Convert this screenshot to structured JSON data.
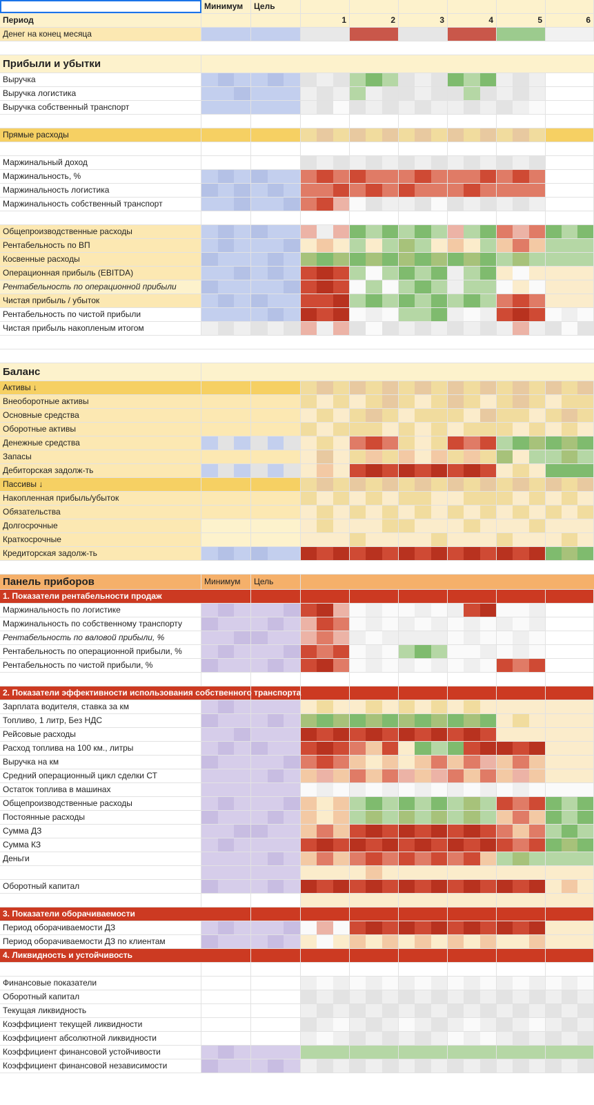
{
  "header": {
    "col_a_empty": "",
    "min_label": "Минимум",
    "goal_label": "Цель",
    "period_label": "Период",
    "periods": [
      "1",
      "2",
      "3",
      "4",
      "5",
      "6"
    ],
    "cash_end_label": "Денег на конец месяца"
  },
  "colors": {
    "header_bg": "#fdf2cc",
    "yellow_row": "#fce8b2",
    "orange_yellow": "#f6d063",
    "orange_section": "#f5b06a",
    "red_section": "#cc3a22",
    "blue_fill": "#c3cfee",
    "lavender_fill": "#d6cdea",
    "red_cf": "#d9533a",
    "green_cf": "#8bc27b",
    "grey_cf": "#e6e6e6"
  },
  "pnl": {
    "title": "Прибыли и убытки",
    "rows": [
      "Выручка",
      "Выручка логистика",
      "Выручка собственный транспорт",
      "",
      "Прямые расходы",
      "",
      "Маржинальный доход",
      "Маржинальность, %",
      "Маржинальность логистика",
      "Маржинальность собственный транспорт",
      "",
      "Общепроизводственные расходы",
      "Рентабельность по ВП",
      "Косвенные расходы",
      "Операционная прибыль (EBITDA)",
      "Рентабельность по операционной прибыли",
      "Чистая прибыль / убыток",
      "Рентабельность по чистой прибыли",
      "Чистая прибыль накопленым итогом"
    ]
  },
  "balance": {
    "title": "Баланс",
    "rows": [
      "Активы ↓",
      "Внеоборотные активы",
      "Основные средства",
      "Оборотные активы",
      "Денежные средства",
      "Запасы",
      "Дебиторская задолж-ть",
      "Пассивы ↓",
      "Накопленная прибыль/убыток",
      "Обязательства",
      "Долгосрочные",
      "Краткосрочные",
      "Кредиторская задолж-ть"
    ]
  },
  "dashboard": {
    "title": "Панель приборов",
    "min_label": "Минимум",
    "goal_label": "Цель",
    "sec1": {
      "title": "1. Показатели рентабельности продаж",
      "rows": [
        "Маржинальность по логистике",
        "Маржинальность по собственному транспорту",
        "Рентабельность по валовой прибыли, %",
        "Рентабельность по операционной прибыли, %",
        "Рентабельность по чистой прибыли, %"
      ]
    },
    "sec2": {
      "title": "2. Показатели эффективности использования собственного транспорта",
      "rows": [
        "Зарплата водителя, ставка за км",
        "Топливо, 1 литр, Без НДС",
        "Рейсовые расходы",
        "Расход топлива на 100 км., литры",
        "Выручка на км",
        "Средний операционный цикл сделки СТ",
        "Остаток топлива в машинах",
        "Общепроизводственные расходы",
        "Постоянные расходы",
        "Сумма ДЗ",
        "Сумма КЗ",
        "Деньги",
        "",
        "Оборотный капитал"
      ]
    },
    "sec3": {
      "title": "3. Показатели оборачиваемости",
      "rows": [
        "Период оборачиваемости ДЗ",
        "Период оборачиваемости ДЗ по клиентам"
      ]
    },
    "sec4": {
      "title": "4. Ликвидность и устойчивость",
      "rows": [
        "",
        "Финансовые показатели",
        "Оборотный капитал",
        "Текущая ликвидность",
        "Коэффициент текущей ликвидности",
        "Коэффициент абсолютной ликвидности",
        "Коэффициент финансовой устойчивости",
        "Коэффициент финансовой независимости"
      ]
    }
  }
}
